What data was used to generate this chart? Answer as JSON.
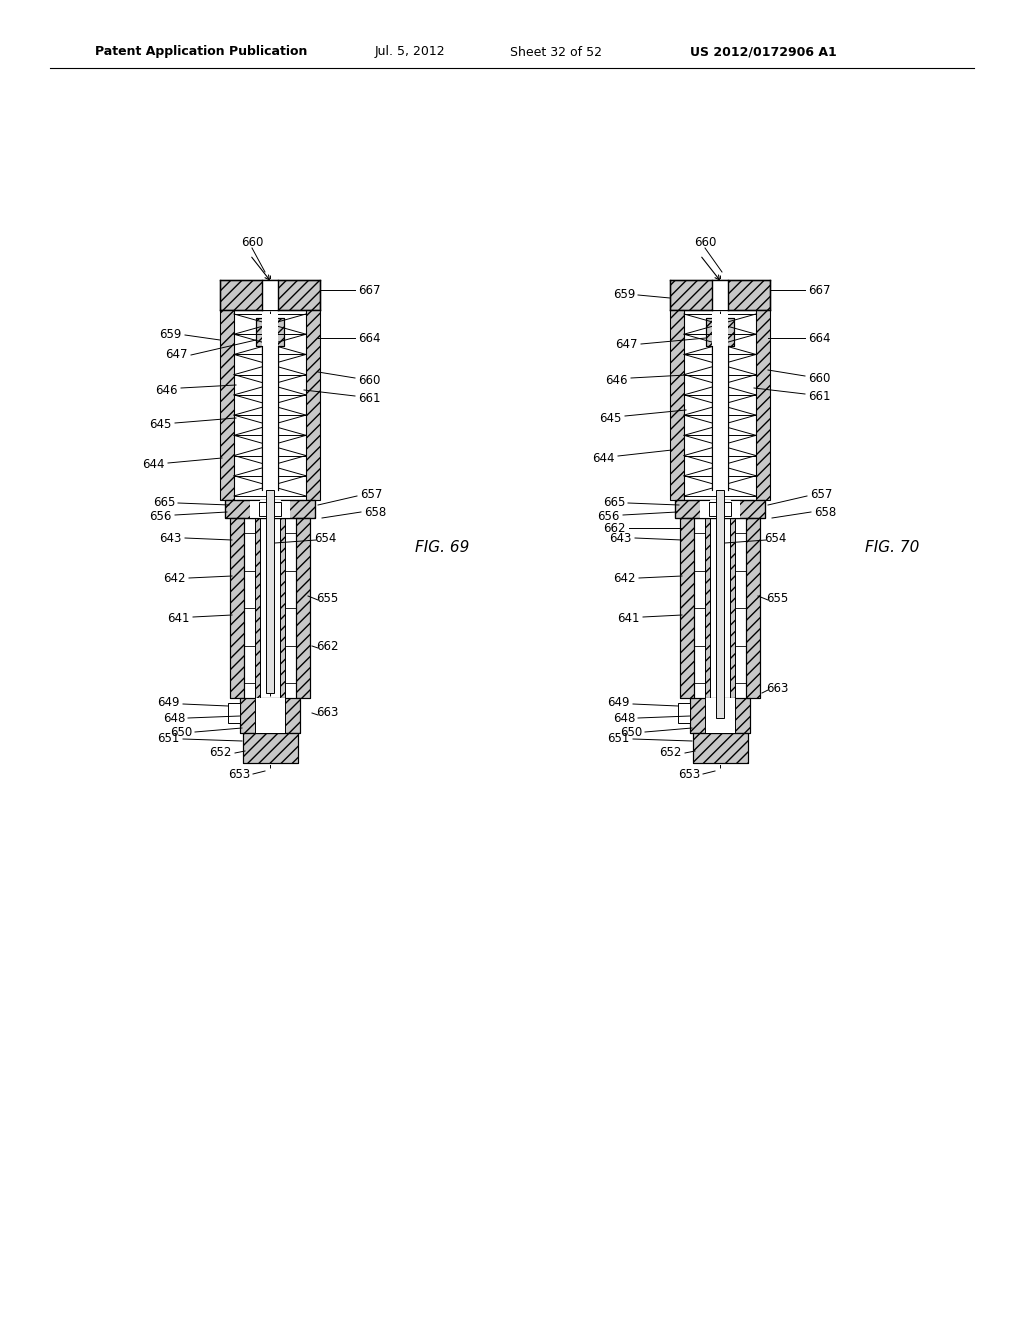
{
  "background_color": "#ffffff",
  "header_text": "Patent Application Publication",
  "header_date": "Jul. 5, 2012",
  "header_sheet": "Sheet 32 of 52",
  "header_patent": "US 2012/0172906 A1",
  "fig69_label": "FIG. 69",
  "fig70_label": "FIG. 70"
}
